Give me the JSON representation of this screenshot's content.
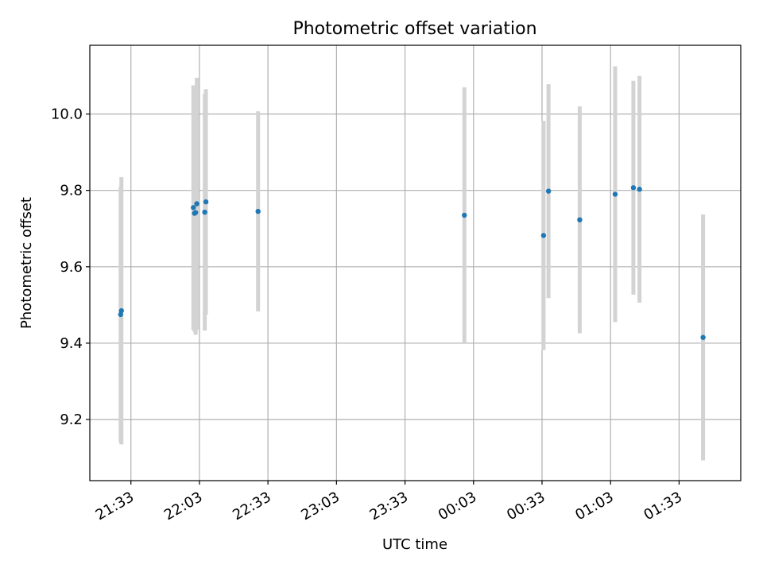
{
  "chart_data": {
    "type": "scatter",
    "title": "Photometric offset variation",
    "xlabel": "UTC time",
    "ylabel": "Photometric offset",
    "grid": true,
    "legend": "none",
    "x_tick_labels": [
      "21:33",
      "22:03",
      "22:33",
      "23:03",
      "23:33",
      "00:03",
      "00:33",
      "01:03",
      "01:33"
    ],
    "xlim": [
      "21:15",
      "02:00"
    ],
    "y_ticks": [
      9.2,
      9.4,
      9.6,
      9.8,
      10.0
    ],
    "y_tick_labels": [
      "9.2",
      "9.4",
      "9.6",
      "9.8",
      "10.0"
    ],
    "ylim": [
      9.04,
      10.18
    ],
    "colors": {
      "points": "#1f77b4",
      "errorbars": "#d3d3d3",
      "grid": "#b0b0b0"
    },
    "points": [
      {
        "x": "21:28:30",
        "y": 9.475,
        "yerr": 0.335
      },
      {
        "x": "21:28:50",
        "y": 9.485,
        "yerr": 0.35
      },
      {
        "x": "22:00:20",
        "y": 9.755,
        "yerr": 0.32
      },
      {
        "x": "22:00:50",
        "y": 9.74,
        "yerr": 0.31
      },
      {
        "x": "22:01:20",
        "y": 9.742,
        "yerr": 0.32
      },
      {
        "x": "22:01:50",
        "y": 9.765,
        "yerr": 0.33
      },
      {
        "x": "22:05:20",
        "y": 9.743,
        "yerr": 0.31
      },
      {
        "x": "22:05:50",
        "y": 9.77,
        "yerr": 0.295
      },
      {
        "x": "22:28:40",
        "y": 9.745,
        "yerr": 0.262
      },
      {
        "x": "23:59:00",
        "y": 9.735,
        "yerr": 0.335
      },
      {
        "x": "00:33:40",
        "y": 9.682,
        "yerr": 0.3
      },
      {
        "x": "00:35:50",
        "y": 9.798,
        "yerr": 0.28
      },
      {
        "x": "00:49:30",
        "y": 9.723,
        "yerr": 0.297
      },
      {
        "x": "01:05:00",
        "y": 9.79,
        "yerr": 0.335
      },
      {
        "x": "01:13:00",
        "y": 9.807,
        "yerr": 0.28
      },
      {
        "x": "01:15:40",
        "y": 9.803,
        "yerr": 0.297
      },
      {
        "x": "01:43:30",
        "y": 9.415,
        "yerr": 0.322
      }
    ]
  }
}
